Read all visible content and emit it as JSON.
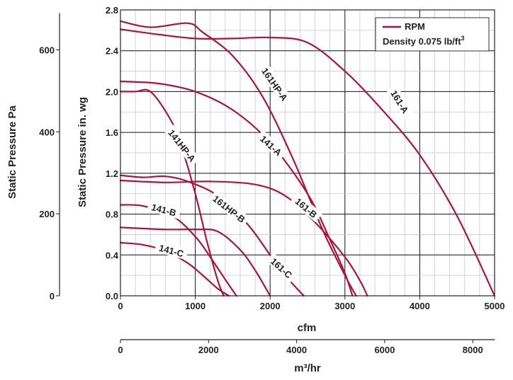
{
  "chart_data": {
    "type": "line",
    "xlabel": "cfm",
    "ylabel": "Static Pressure in. wg",
    "ylabel_secondary": "Static Pressure Pa",
    "xlabel_secondary": "m³/hr",
    "xlim": [
      0,
      5000
    ],
    "ylim": [
      0,
      2.8
    ],
    "xticks": [
      "0",
      "1000",
      "2000",
      "3000",
      "4000",
      "5000"
    ],
    "yticks": [
      "0.0",
      "0.4",
      "0.8",
      "1.2",
      "1.6",
      "2.0",
      "2.4",
      "2.8"
    ],
    "pa_ticks": [
      {
        "label": "0",
        "value": 0
      },
      {
        "label": "200",
        "value": 200
      },
      {
        "label": "400",
        "value": 400
      },
      {
        "label": "600",
        "value": 600
      }
    ],
    "m3hr_ticks": [
      {
        "label": "0",
        "value": 0
      },
      {
        "label": "2000",
        "value": 2000
      },
      {
        "label": "4000",
        "value": 4000
      },
      {
        "label": "6000",
        "value": 6000
      },
      {
        "label": "8000",
        "value": 8000
      }
    ],
    "grid": true,
    "legend": {
      "position": "top-right",
      "entry": "RPM",
      "density_prefix": "Density 0.075 lb/ft",
      "density_sup": "3"
    },
    "colors": {
      "curve": "#b0123e",
      "grid": "#c8c8c8",
      "axis": "#222222"
    },
    "series": [
      {
        "name": "161-A",
        "x": [
          0,
          500,
          1000,
          1500,
          2000,
          2500,
          3000,
          3500,
          4000,
          4500,
          5000
        ],
        "y": [
          2.61,
          2.56,
          2.52,
          2.52,
          2.53,
          2.48,
          2.2,
          1.82,
          1.38,
          0.78,
          0.0
        ]
      },
      {
        "name": "161HP-A",
        "x": [
          0,
          400,
          900,
          1100,
          1500,
          1900,
          2300,
          2700,
          3000,
          3150
        ],
        "y": [
          2.69,
          2.63,
          2.67,
          2.58,
          2.35,
          1.95,
          1.35,
          0.65,
          0.2,
          0.0
        ]
      },
      {
        "name": "141-A",
        "x": [
          0,
          500,
          1000,
          1500,
          2000,
          2500,
          2800,
          3000,
          3100
        ],
        "y": [
          2.1,
          2.08,
          2.0,
          1.82,
          1.5,
          1.0,
          0.55,
          0.22,
          0.0
        ]
      },
      {
        "name": "161-B",
        "x": [
          0,
          600,
          1200,
          1800,
          2200,
          2600,
          3000,
          3200,
          3300
        ],
        "y": [
          1.13,
          1.11,
          1.12,
          1.09,
          0.98,
          0.72,
          0.38,
          0.15,
          0.0
        ]
      },
      {
        "name": "141HP-A",
        "x": [
          0,
          200,
          400,
          650,
          800,
          1000,
          1150,
          1300,
          1380
        ],
        "y": [
          2.0,
          2.0,
          2.0,
          1.75,
          1.5,
          1.0,
          0.55,
          0.15,
          0.0
        ]
      },
      {
        "name": "161HP-B",
        "x": [
          0,
          300,
          600,
          900,
          1300,
          1700,
          2000,
          2200,
          2450
        ],
        "y": [
          1.18,
          1.16,
          1.17,
          1.12,
          0.98,
          0.7,
          0.4,
          0.2,
          0.0
        ]
      },
      {
        "name": "141-B",
        "x": [
          0,
          300,
          700,
          1000,
          1200,
          1400,
          1550
        ],
        "y": [
          0.89,
          0.88,
          0.78,
          0.58,
          0.38,
          0.16,
          0.0
        ]
      },
      {
        "name": "161-C",
        "x": [
          0,
          600,
          1000,
          1300,
          1600,
          1800,
          2000
        ],
        "y": [
          0.67,
          0.65,
          0.65,
          0.63,
          0.45,
          0.25,
          0.0
        ]
      },
      {
        "name": "141-C",
        "x": [
          0,
          300,
          600,
          900,
          1100,
          1300,
          1450
        ],
        "y": [
          0.52,
          0.5,
          0.44,
          0.32,
          0.2,
          0.07,
          0.0
        ]
      }
    ],
    "curve_labels": [
      {
        "text": "161-A",
        "x": 3730,
        "y": 1.9,
        "angle": 58
      },
      {
        "text": "161HP-A",
        "x": 2060,
        "y": 2.07,
        "angle": 55
      },
      {
        "text": "141-A",
        "x": 2010,
        "y": 1.47,
        "angle": 42
      },
      {
        "text": "161-B",
        "x": 2480,
        "y": 0.86,
        "angle": 40
      },
      {
        "text": "141HP-A",
        "x": 820,
        "y": 1.47,
        "angle": 52
      },
      {
        "text": "161HP-B",
        "x": 1450,
        "y": 0.85,
        "angle": 38
      },
      {
        "text": "141-B",
        "x": 580,
        "y": 0.84,
        "angle": 15
      },
      {
        "text": "161-C",
        "x": 2150,
        "y": 0.27,
        "angle": 42
      },
      {
        "text": "141-C",
        "x": 680,
        "y": 0.44,
        "angle": 15
      }
    ]
  }
}
